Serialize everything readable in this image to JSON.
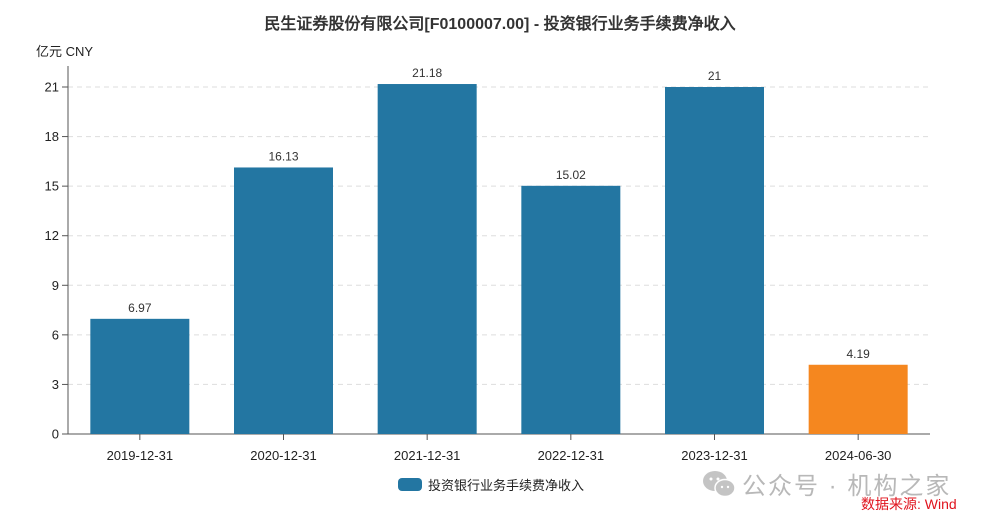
{
  "header": {
    "title": "民生证券股份有限公司[F0100007.00] - 投资银行业务手续费净收入",
    "unit_label": "亿元  CNY"
  },
  "legend": {
    "label": "投资银行业务手续费净收入"
  },
  "footer": {
    "watermark": "公众号 · 机构之家",
    "watermark_icon": "wechat-icon",
    "source": "数据来源: Wind"
  },
  "colors": {
    "bar": "#2376a2",
    "highlight_bar": "#f5871f",
    "source_text": "#e0141e",
    "grid": "#dddddd"
  },
  "chart_data": {
    "type": "bar",
    "title": "民生证券股份有限公司[F0100007.00] - 投资银行业务手续费净收入",
    "xlabel": "",
    "ylabel": "亿元 CNY",
    "categories": [
      "2019-12-31",
      "2020-12-31",
      "2021-12-31",
      "2022-12-31",
      "2023-12-31",
      "2024-06-30"
    ],
    "series": [
      {
        "name": "投资银行业务手续费净收入",
        "values": [
          6.97,
          16.13,
          21.18,
          15.02,
          21,
          4.19
        ]
      }
    ],
    "data_labels": [
      "6.97",
      "16.13",
      "21.18",
      "15.02",
      "21",
      "4.19"
    ],
    "highlighted_index": 5,
    "yticks": [
      0,
      3,
      6,
      9,
      12,
      15,
      18,
      21
    ],
    "ylim": [
      0,
      22
    ],
    "grid": true,
    "grid_style": "dashed-horizontal",
    "legend_position": "bottom"
  }
}
